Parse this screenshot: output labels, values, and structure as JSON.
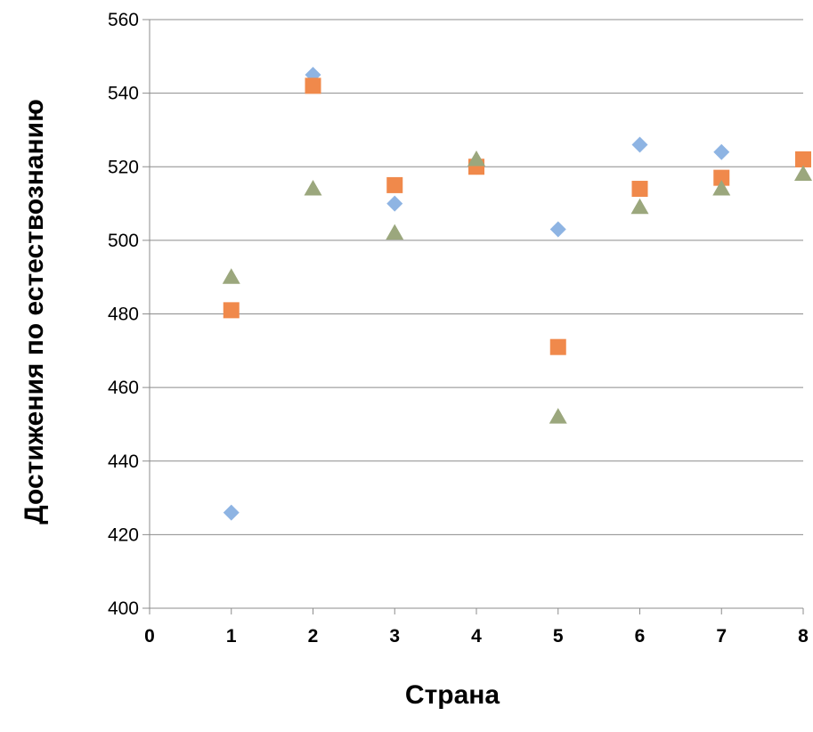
{
  "chart_data": {
    "type": "scatter",
    "title": "",
    "xlabel": "Страна",
    "ylabel": "Достижения по естествознанию",
    "xlim": [
      0,
      8
    ],
    "ylim": [
      400,
      560
    ],
    "x_ticks": [
      0,
      1,
      2,
      3,
      4,
      5,
      6,
      7,
      8
    ],
    "y_ticks": [
      400,
      420,
      440,
      460,
      480,
      500,
      520,
      540,
      560
    ],
    "grid": "horizontal",
    "legend": "none",
    "series": [
      {
        "marker": "diamond",
        "color": "#8EB4E3",
        "points": [
          [
            1,
            426
          ],
          [
            2,
            545
          ],
          [
            3,
            510
          ],
          [
            4,
            520
          ],
          [
            5,
            503
          ],
          [
            6,
            526
          ],
          [
            7,
            524
          ],
          [
            8,
            522
          ]
        ]
      },
      {
        "marker": "square",
        "color": "#F0894B",
        "points": [
          [
            1,
            481
          ],
          [
            2,
            542
          ],
          [
            3,
            515
          ],
          [
            4,
            520
          ],
          [
            5,
            471
          ],
          [
            6,
            514
          ],
          [
            7,
            517
          ],
          [
            8,
            522
          ]
        ]
      },
      {
        "marker": "triangle",
        "color": "#9BA77D",
        "points": [
          [
            1,
            490
          ],
          [
            2,
            514
          ],
          [
            3,
            502
          ],
          [
            4,
            522
          ],
          [
            5,
            452
          ],
          [
            6,
            509
          ],
          [
            7,
            514
          ],
          [
            8,
            518
          ]
        ]
      }
    ]
  }
}
